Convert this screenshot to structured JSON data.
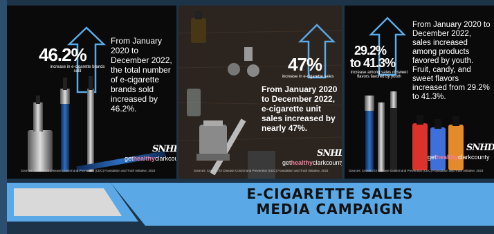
{
  "panels": [
    {
      "percent": "46.2%",
      "percent_caption": "increase in e-cigarette brands sold",
      "body": "From January 2020 to December 2022, the total number of e-cigarette brands sold increased by 46.2%.",
      "source": "Sources: Centers for Disease Control and Prevention (CDC) Foundation and Truth Initiative, 2023"
    },
    {
      "percent": "47%",
      "percent_caption": "increase in e-cigarette sales",
      "body": "From January 2020 to December 2022, e-cigarette unit sales increased by nearly 47%.",
      "source": "Sources: Centers for Disease Control and Prevention (CDC) Foundation and Truth Initiative, 2023"
    },
    {
      "percent": "29.2% to 41.3%",
      "percent_line1": "29.2%",
      "percent_line2": "to 41.3%",
      "percent_caption": "increase among sales of sweet flavors favored by youth",
      "body": "From January 2020 to December 2022, sales increased among products favored by youth. Fruit, candy, and sweet flavors increased from 29.2% to 41.3%.",
      "source": "Sources: Centers for Disease Control and Prevention (CDC) Foundation and Truth Initiative, 2023"
    }
  ],
  "brand": {
    "prefix": "get",
    "highlight": "healthy",
    "suffix": "clarkcounty"
  },
  "logo_text": "SNHD",
  "campaign_title": {
    "line1": "E-CIGARETTE SALES",
    "line2": "MEDIA CAMPAIGN"
  },
  "colors": {
    "background": "#1d3348",
    "accent_blue": "#5aa9e6",
    "title_text": "#111111",
    "grey_bar": "#d9d9d9"
  }
}
